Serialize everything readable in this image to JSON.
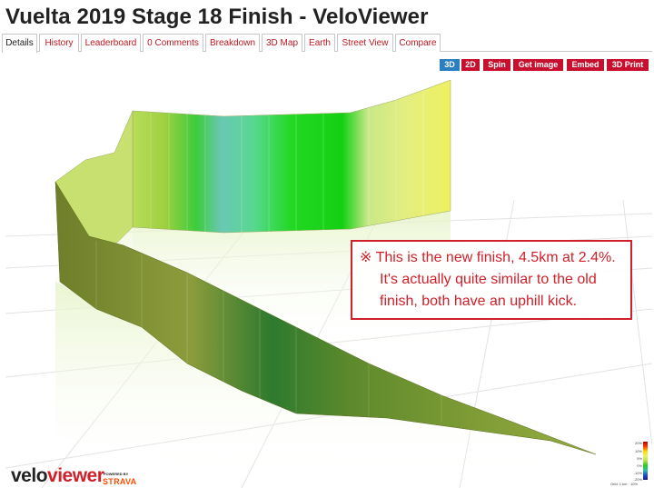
{
  "page": {
    "title": "Vuelta 2019 Stage 18 Finish - VeloViewer"
  },
  "tabs": [
    {
      "label": "Details",
      "active": true
    },
    {
      "label": "History"
    },
    {
      "label": "Leaderboard"
    },
    {
      "label": "0 Comments"
    },
    {
      "label": "Breakdown"
    },
    {
      "label": "3D Map"
    },
    {
      "label": "Earth"
    },
    {
      "label": "Street View"
    },
    {
      "label": "Compare"
    }
  ],
  "toolbar": {
    "btn_3d": "3D",
    "btn_2d": "2D",
    "btn_spin": "Spin",
    "btn_get_image": "Get image",
    "btn_embed": "Embed",
    "btn_3d_print": "3D Print"
  },
  "annotation": {
    "line1": "※ This is the new finish, 4.5km at 2.4%.",
    "line2": "It's actually quite similar to the old",
    "line3": "finish, both have an uphill kick."
  },
  "branding": {
    "logo_velo": "velo",
    "logo_viewer": "viewer",
    "powered_by": "POWERED BY",
    "strava": "STRAVA"
  },
  "gradient_legend": {
    "ticks": [
      "20%",
      "10%",
      "5%",
      "0%",
      "-10%",
      "-20%"
    ],
    "note": "Grid: 1 km  ·  10%"
  },
  "colors": {
    "accent": "#c8102e",
    "active_toggle": "#2a7fc1",
    "callout": "#d0202a",
    "strava": "#fc4c02"
  }
}
